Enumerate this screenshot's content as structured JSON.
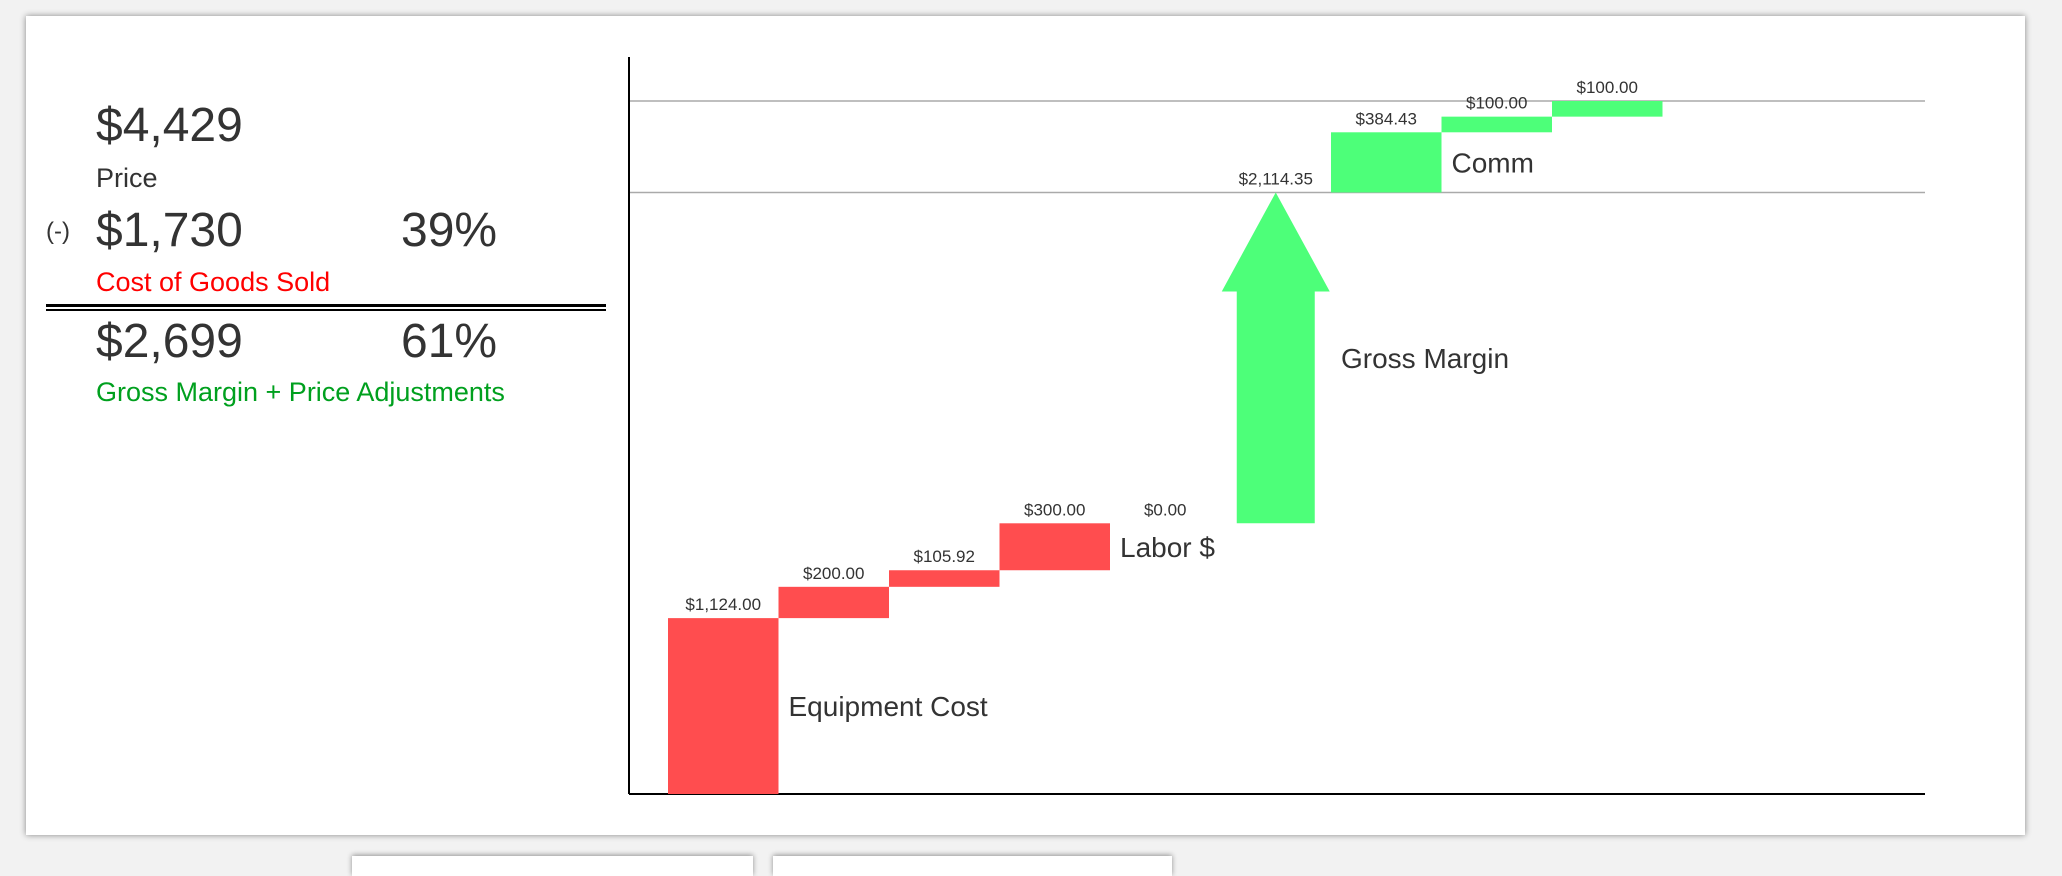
{
  "summary": {
    "price_value": "$4,429",
    "price_label": "Price",
    "minus_sign": "(-)",
    "cogs_value": "$1,730",
    "cogs_percent": "39%",
    "cogs_label": "Cost of Goods Sold",
    "margin_value": "$2,699",
    "margin_percent": "61%",
    "margin_label": "Gross Margin + Price Adjustments"
  },
  "colors": {
    "cost": "#ff4d4f",
    "gain": "#4dff79",
    "cogs_label": "#ff0000",
    "margin_label": "#00a01e"
  },
  "chart_data": {
    "type": "waterfall",
    "steps": [
      {
        "value": 1124.0,
        "label": "$1,124.00",
        "kind": "cost"
      },
      {
        "value": 200.0,
        "label": "$200.00",
        "kind": "cost"
      },
      {
        "value": 105.92,
        "label": "$105.92",
        "kind": "cost"
      },
      {
        "value": 300.0,
        "label": "$300.00",
        "kind": "cost"
      },
      {
        "value": 0.0,
        "label": "$0.00",
        "kind": "cost"
      },
      {
        "value": 2114.35,
        "label": "$2,114.35",
        "kind": "arrow"
      },
      {
        "value": 384.43,
        "label": "$384.43",
        "kind": "gain"
      },
      {
        "value": 100.0,
        "label": "$100.00",
        "kind": "gain"
      },
      {
        "value": 100.0,
        "label": "$100.00",
        "kind": "gain"
      }
    ],
    "group_labels": [
      {
        "text": "Equipment Cost",
        "step": 0
      },
      {
        "text": "Labor $",
        "step": 3
      },
      {
        "text": "Gross Margin",
        "step": 5
      },
      {
        "text": "Comm",
        "step": 6
      }
    ],
    "reference_lines": [
      3844.27,
      4428.7
    ],
    "ylim": [
      0,
      4428.7
    ]
  }
}
